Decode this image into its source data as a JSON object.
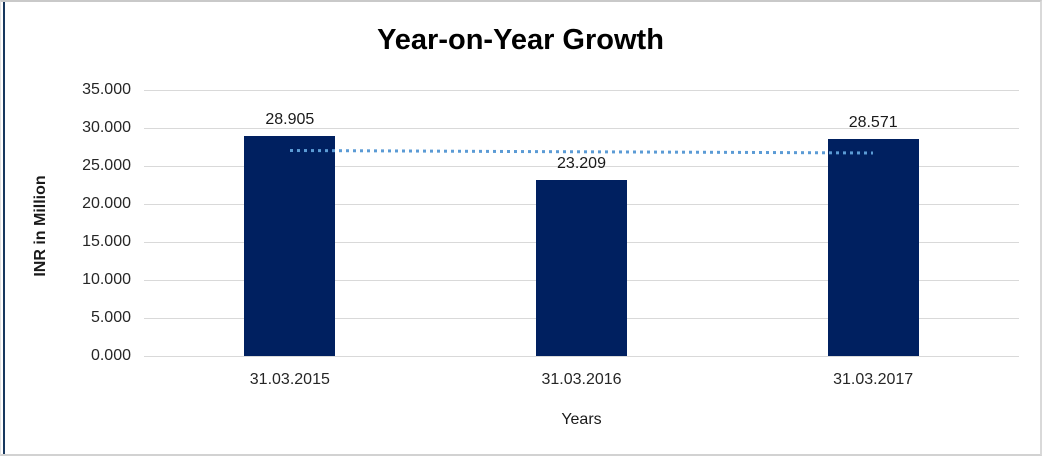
{
  "chart_data": {
    "type": "bar",
    "title": "Year-on-Year Growth",
    "categories": [
      "31.03.2015",
      "31.03.2016",
      "31.03.2017"
    ],
    "values": [
      28.905,
      23.209,
      28.571
    ],
    "data_labels": [
      "28.905",
      "23.209",
      "28.571"
    ],
    "xlabel": "Years",
    "ylabel": "INR in Million",
    "ylim": [
      0,
      35
    ],
    "ytick_step": 5,
    "ytick_labels": [
      "0.000",
      "5.000",
      "10.000",
      "15.000",
      "20.000",
      "25.000",
      "30.000",
      "35.000"
    ],
    "grid": true,
    "legend_position": "none",
    "bar_color": "#002060",
    "gridline_color": "#d9d9d9",
    "trendline": {
      "type": "linear",
      "style": "dotted",
      "color": "#5b9bd5"
    }
  },
  "frame": {
    "background": "#ffffff",
    "border_color": "#d9d9d9",
    "left_rule_color": "#17375e"
  }
}
